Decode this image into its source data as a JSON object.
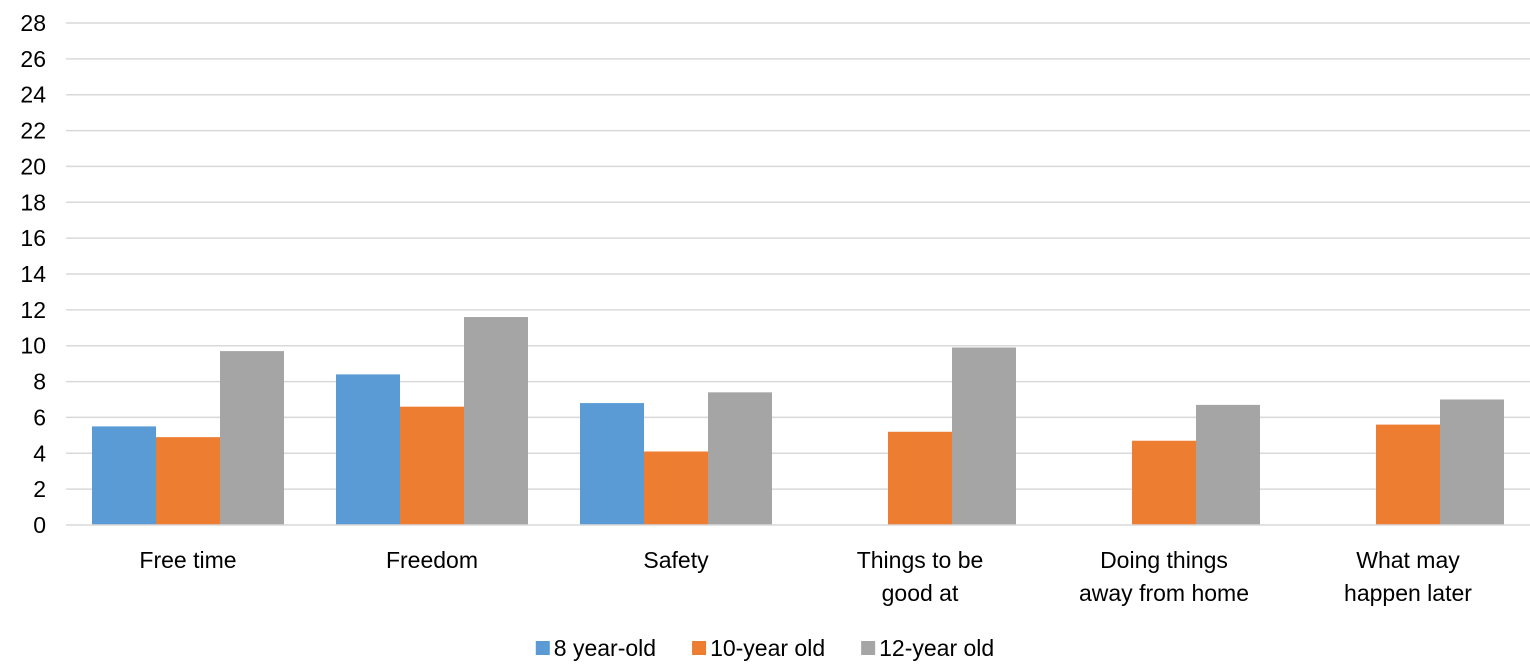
{
  "chart_data": {
    "type": "bar",
    "title": "",
    "xlabel": "",
    "ylabel": "",
    "ylim": [
      0,
      28
    ],
    "ytick_step": 2,
    "grid": true,
    "legend_position": "bottom",
    "categories": [
      [
        "Free time"
      ],
      [
        "Freedom"
      ],
      [
        "Safety"
      ],
      [
        "Things to be",
        "good at"
      ],
      [
        "Doing things",
        "away from home"
      ],
      [
        "What may",
        "happen later"
      ]
    ],
    "series": [
      {
        "name": "8 year-old",
        "color": "#5b9bd5",
        "values": [
          5.5,
          8.4,
          6.8,
          0,
          0,
          0
        ]
      },
      {
        "name": "10-year old",
        "color": "#ed7d31",
        "values": [
          4.9,
          6.6,
          4.1,
          5.2,
          4.7,
          5.6
        ]
      },
      {
        "name": "12-year old",
        "color": "#a5a5a5",
        "values": [
          9.7,
          11.6,
          7.4,
          9.9,
          6.7,
          7.0
        ]
      }
    ]
  }
}
